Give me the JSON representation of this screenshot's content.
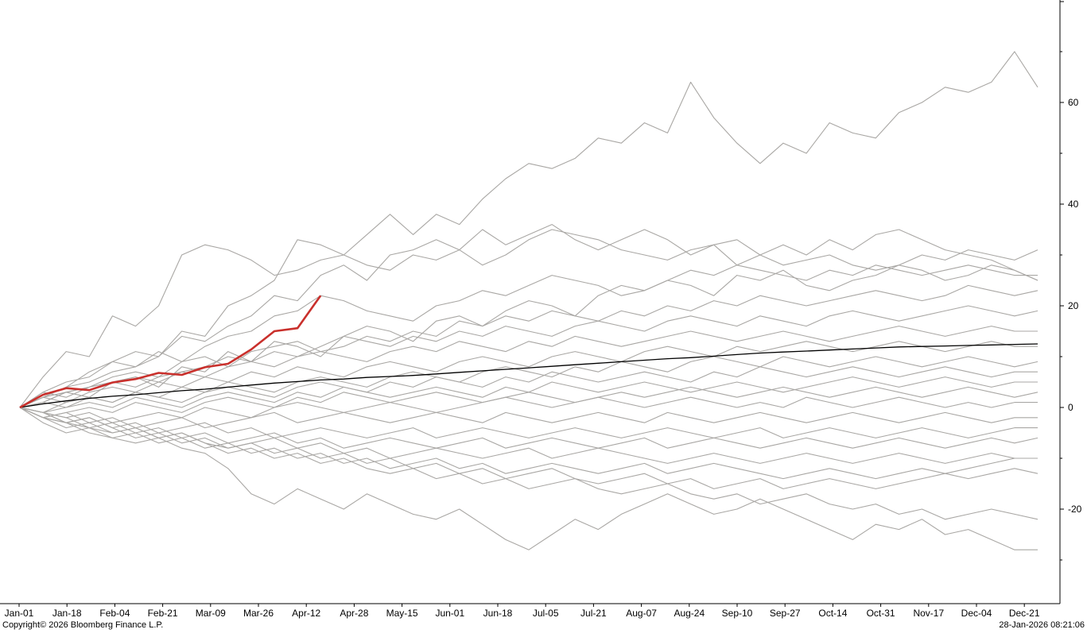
{
  "footer": {
    "copyright": "Copyright© 2026 Bloomberg Finance L.P.",
    "timestamp": "28-Jan-2026 08:21:06"
  },
  "colors": {
    "history": "#a9a7a4",
    "average": "#000000",
    "current": "#c9302c",
    "axis": "#000000"
  },
  "chart_data": {
    "type": "line",
    "title": "",
    "xlabel": "",
    "ylabel": "",
    "x_tick_labels": [
      "Jan-01",
      "Jan-18",
      "Feb-04",
      "Feb-21",
      "Mar-09",
      "Mar-26",
      "Apr-12",
      "Apr-28",
      "May-15",
      "Jun-01",
      "Jun-18",
      "Jul-05",
      "Jul-21",
      "Aug-07",
      "Aug-24",
      "Sep-10",
      "Sep-27",
      "Oct-14",
      "Oct-31",
      "Nov-17",
      "Dec-04",
      "Dec-21"
    ],
    "y_ticks": [
      60,
      40,
      20,
      0,
      -20
    ],
    "ylim": [
      -38,
      80
    ],
    "axis_side": "right",
    "grid": false,
    "legend": "none",
    "series": [
      {
        "role": "history",
        "values": [
          0,
          6,
          11,
          10,
          18,
          16,
          20,
          30,
          32,
          31,
          29,
          26,
          27,
          29,
          30,
          34,
          38,
          34,
          38,
          36,
          41,
          45,
          48,
          47,
          49,
          53,
          52,
          56,
          54,
          64,
          57,
          52,
          48,
          52,
          50,
          56,
          54,
          53,
          58,
          60,
          63,
          62,
          64,
          70,
          63
        ]
      },
      {
        "role": "history",
        "values": [
          0,
          3,
          5,
          6,
          9,
          8,
          10,
          15,
          14,
          20,
          22,
          25,
          33,
          32,
          30,
          28,
          27,
          30,
          29,
          31,
          28,
          30,
          33,
          35,
          34,
          33,
          31,
          30,
          29,
          31,
          32,
          33,
          30,
          28,
          29,
          30,
          28,
          27,
          28,
          30,
          29,
          31,
          30,
          29,
          31
        ]
      },
      {
        "role": "history",
        "values": [
          0,
          2,
          4,
          5,
          7,
          8,
          11,
          9,
          12,
          14,
          15,
          18,
          19,
          22,
          21,
          19,
          18,
          17,
          20,
          21,
          23,
          22,
          24,
          26,
          25,
          24,
          22,
          23,
          25,
          27,
          26,
          28,
          27,
          26,
          25,
          27,
          26,
          28,
          27,
          26,
          27,
          28,
          27,
          26,
          26
        ]
      },
      {
        "role": "history",
        "values": [
          0,
          2,
          3,
          4,
          6,
          7,
          6,
          9,
          10,
          8,
          11,
          12,
          13,
          11,
          12,
          14,
          13,
          15,
          14,
          17,
          16,
          18,
          17,
          19,
          18,
          17,
          19,
          18,
          20,
          19,
          21,
          20,
          22,
          21,
          20,
          21,
          22,
          23,
          22,
          21,
          22,
          24,
          23,
          22,
          23
        ]
      },
      {
        "role": "history",
        "values": [
          0,
          3,
          2,
          4,
          5,
          6,
          5,
          7,
          8,
          10,
          9,
          11,
          10,
          12,
          14,
          13,
          12,
          14,
          13,
          15,
          14,
          16,
          15,
          14,
          16,
          17,
          16,
          15,
          17,
          18,
          17,
          16,
          18,
          17,
          16,
          18,
          19,
          18,
          17,
          18,
          19,
          20,
          19,
          18,
          19
        ]
      },
      {
        "role": "history",
        "values": [
          0,
          1,
          3,
          4,
          5,
          4,
          6,
          7,
          6,
          8,
          9,
          8,
          10,
          11,
          10,
          9,
          11,
          12,
          11,
          13,
          12,
          11,
          13,
          12,
          14,
          13,
          12,
          13,
          14,
          15,
          14,
          13,
          14,
          15,
          14,
          13,
          14,
          15,
          16,
          15,
          14,
          15,
          16,
          15,
          15
        ]
      },
      {
        "role": "history",
        "values": [
          0,
          2,
          1,
          3,
          4,
          3,
          5,
          4,
          6,
          5,
          7,
          6,
          8,
          7,
          6,
          8,
          9,
          8,
          7,
          9,
          10,
          9,
          8,
          10,
          11,
          10,
          9,
          11,
          12,
          11,
          10,
          12,
          11,
          12,
          13,
          12,
          11,
          12,
          13,
          12,
          11,
          12,
          13,
          12,
          12
        ]
      },
      {
        "role": "history",
        "values": [
          0,
          -1,
          1,
          2,
          1,
          3,
          2,
          4,
          3,
          5,
          4,
          3,
          5,
          6,
          5,
          4,
          6,
          7,
          6,
          5,
          7,
          8,
          7,
          6,
          8,
          7,
          9,
          8,
          7,
          9,
          10,
          9,
          8,
          10,
          9,
          8,
          9,
          10,
          9,
          8,
          9,
          10,
          9,
          8,
          9
        ]
      },
      {
        "role": "history",
        "values": [
          0,
          1,
          0,
          2,
          1,
          3,
          2,
          1,
          3,
          4,
          3,
          2,
          4,
          5,
          4,
          3,
          5,
          4,
          6,
          5,
          4,
          6,
          5,
          7,
          6,
          5,
          6,
          7,
          6,
          5,
          7,
          6,
          8,
          7,
          6,
          7,
          8,
          7,
          6,
          7,
          8,
          7,
          6,
          7,
          7
        ]
      },
      {
        "role": "history",
        "values": [
          0,
          -1,
          0,
          1,
          0,
          2,
          1,
          0,
          2,
          3,
          2,
          1,
          3,
          2,
          4,
          3,
          2,
          3,
          4,
          3,
          2,
          4,
          3,
          5,
          4,
          3,
          4,
          5,
          4,
          3,
          4,
          5,
          4,
          3,
          4,
          5,
          6,
          5,
          4,
          5,
          6,
          5,
          4,
          5,
          5
        ]
      },
      {
        "role": "history",
        "values": [
          0,
          -2,
          -1,
          0,
          -1,
          1,
          0,
          -1,
          1,
          2,
          1,
          0,
          2,
          1,
          3,
          2,
          1,
          2,
          3,
          2,
          1,
          2,
          3,
          2,
          1,
          2,
          3,
          2,
          3,
          4,
          3,
          2,
          3,
          4,
          3,
          2,
          3,
          4,
          3,
          2,
          3,
          4,
          3,
          2,
          3
        ]
      },
      {
        "role": "history",
        "values": [
          0,
          -1,
          -2,
          -1,
          -3,
          -2,
          -1,
          -2,
          0,
          -1,
          -2,
          0,
          1,
          0,
          -1,
          0,
          1,
          0,
          -1,
          0,
          1,
          2,
          1,
          0,
          1,
          2,
          1,
          0,
          1,
          2,
          1,
          0,
          1,
          0,
          2,
          1,
          0,
          1,
          2,
          1,
          0,
          1,
          0,
          1,
          1
        ]
      },
      {
        "role": "history",
        "values": [
          0,
          -2,
          -1,
          -3,
          -2,
          -4,
          -3,
          -2,
          -4,
          -3,
          -2,
          -1,
          -3,
          -2,
          -1,
          -2,
          -3,
          -2,
          -1,
          -2,
          -3,
          -1,
          -2,
          -3,
          -2,
          -1,
          -2,
          -3,
          -1,
          -2,
          -3,
          -2,
          -1,
          -2,
          -3,
          -2,
          -1,
          -2,
          -3,
          -2,
          -1,
          -2,
          -3,
          -2,
          -2
        ]
      },
      {
        "role": "history",
        "values": [
          0,
          -1,
          -3,
          -2,
          -4,
          -3,
          -5,
          -4,
          -3,
          -5,
          -4,
          -6,
          -5,
          -4,
          -5,
          -6,
          -5,
          -4,
          -6,
          -5,
          -4,
          -5,
          -6,
          -5,
          -4,
          -5,
          -6,
          -5,
          -4,
          -5,
          -6,
          -5,
          -4,
          -6,
          -5,
          -4,
          -5,
          -6,
          -5,
          -4,
          -5,
          -6,
          -5,
          -4,
          -4
        ]
      },
      {
        "role": "history",
        "values": [
          0,
          -2,
          -3,
          -4,
          -3,
          -5,
          -4,
          -6,
          -5,
          -7,
          -6,
          -5,
          -7,
          -6,
          -8,
          -7,
          -6,
          -7,
          -8,
          -7,
          -6,
          -8,
          -7,
          -6,
          -7,
          -8,
          -7,
          -6,
          -8,
          -7,
          -6,
          -7,
          -8,
          -7,
          -6,
          -7,
          -8,
          -7,
          -6,
          -7,
          -8,
          -7,
          -6,
          -7,
          -6
        ]
      },
      {
        "role": "history",
        "values": [
          0,
          -1,
          -2,
          -4,
          -5,
          -4,
          -6,
          -5,
          -7,
          -8,
          -7,
          -9,
          -8,
          -7,
          -9,
          -8,
          -10,
          -9,
          -8,
          -9,
          -10,
          -9,
          -8,
          -10,
          -9,
          -8,
          -9,
          -10,
          -11,
          -10,
          -9,
          -10,
          -11,
          -10,
          -9,
          -10,
          -11,
          -10,
          -9,
          -10,
          -11,
          -10,
          -9,
          -10,
          -10
        ]
      },
      {
        "role": "history",
        "values": [
          0,
          -2,
          -3,
          -5,
          -6,
          -5,
          -7,
          -6,
          -8,
          -7,
          -9,
          -8,
          -10,
          -9,
          -11,
          -10,
          -12,
          -11,
          -10,
          -12,
          -11,
          -13,
          -12,
          -11,
          -12,
          -13,
          -12,
          -11,
          -13,
          -12,
          -11,
          -12,
          -13,
          -14,
          -13,
          -12,
          -13,
          -14,
          -13,
          -12,
          -13,
          -14,
          -13,
          -12,
          -13
        ]
      },
      {
        "role": "history",
        "values": [
          0,
          -1,
          -3,
          -2,
          -4,
          -6,
          -5,
          -7,
          -6,
          -8,
          -7,
          -6,
          -8,
          -10,
          -9,
          -11,
          -10,
          -12,
          -11,
          -13,
          -12,
          -14,
          -13,
          -12,
          -14,
          -15,
          -14,
          -13,
          -15,
          -14,
          -16,
          -15,
          -14,
          -16,
          -15,
          -14,
          -15,
          -16,
          -15,
          -14,
          -13,
          -12,
          -11,
          -10,
          -10
        ]
      },
      {
        "role": "history",
        "values": [
          0,
          -2,
          -4,
          -3,
          -5,
          -4,
          -6,
          -5,
          -7,
          -9,
          -8,
          -10,
          -9,
          -11,
          -10,
          -12,
          -13,
          -12,
          -14,
          -13,
          -15,
          -14,
          -16,
          -15,
          -14,
          -16,
          -17,
          -16,
          -15,
          -17,
          -18,
          -17,
          -19,
          -18,
          -17,
          -19,
          -20,
          -19,
          -21,
          -20,
          -22,
          -21,
          -20,
          -21,
          -22
        ]
      },
      {
        "role": "history",
        "values": [
          0,
          -3,
          -5,
          -4,
          -6,
          -7,
          -6,
          -8,
          -9,
          -12,
          -17,
          -19,
          -16,
          -18,
          -20,
          -17,
          -19,
          -21,
          -22,
          -20,
          -23,
          -26,
          -28,
          -25,
          -22,
          -24,
          -21,
          -19,
          -17,
          -19,
          -21,
          -20,
          -18,
          -20,
          -22,
          -24,
          -26,
          -23,
          -24,
          -22,
          -25,
          -24,
          -26,
          -28,
          -28
        ]
      },
      {
        "role": "history",
        "values": [
          0,
          2,
          4,
          7,
          9,
          11,
          10,
          14,
          13,
          16,
          18,
          22,
          21,
          26,
          28,
          25,
          30,
          31,
          33,
          31,
          35,
          32,
          34,
          36,
          33,
          31,
          33,
          35,
          33,
          30,
          32,
          28,
          30,
          32,
          30,
          33,
          31,
          34,
          35,
          33,
          31,
          30,
          29,
          27,
          25
        ]
      },
      {
        "role": "history",
        "values": [
          0,
          1,
          3,
          2,
          5,
          6,
          4,
          8,
          7,
          11,
          9,
          13,
          12,
          10,
          14,
          16,
          15,
          13,
          17,
          18,
          16,
          19,
          21,
          20,
          18,
          22,
          24,
          23,
          25,
          24,
          22,
          26,
          25,
          27,
          24,
          23,
          25,
          26,
          28,
          27,
          25,
          26,
          28,
          27,
          25
        ]
      },
      {
        "role": "average",
        "values": [
          0,
          0.7,
          1.3,
          1.8,
          2.2,
          2.5,
          2.9,
          3.3,
          3.6,
          4.0,
          4.4,
          4.8,
          5.1,
          5.4,
          5.6,
          5.9,
          6.1,
          6.3,
          6.6,
          6.9,
          7.2,
          7.5,
          7.8,
          8.1,
          8.4,
          8.7,
          9.0,
          9.3,
          9.6,
          9.8,
          10.1,
          10.4,
          10.7,
          10.9,
          11.1,
          11.3,
          11.5,
          11.7,
          11.9,
          12.0,
          12.1,
          12.2,
          12.3,
          12.4,
          12.5
        ]
      },
      {
        "role": "current",
        "values": [
          0,
          2.5,
          3.8,
          3.4,
          4.9,
          5.6,
          6.8,
          6.4,
          7.9,
          8.6,
          11.4,
          15.0,
          15.6,
          22.0
        ]
      }
    ]
  }
}
